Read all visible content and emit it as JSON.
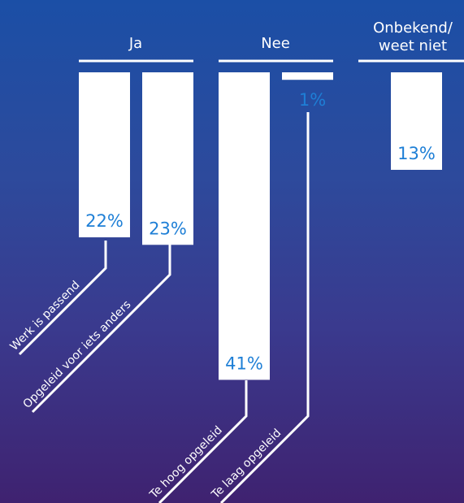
{
  "chart_data": {
    "type": "bar",
    "groups": [
      {
        "label": "Ja"
      },
      {
        "label": "Nee"
      },
      {
        "label_lines": [
          "Onbekend/",
          "weet niet"
        ]
      }
    ],
    "categories": [
      "Werk is passend",
      "Opgeleid voor iets anders",
      "Te hoog opgeleid",
      "Te laag opgeleid",
      ""
    ],
    "values": [
      22,
      23,
      41,
      1,
      13
    ],
    "value_labels": [
      "22%",
      "23%",
      "41%",
      "1%",
      "13%"
    ],
    "bar_group": [
      0,
      0,
      1,
      1,
      2
    ],
    "colors": {
      "bar": "#ffffff",
      "value_text": "#1e7fd6",
      "text": "#ffffff",
      "line": "#ffffff"
    }
  }
}
